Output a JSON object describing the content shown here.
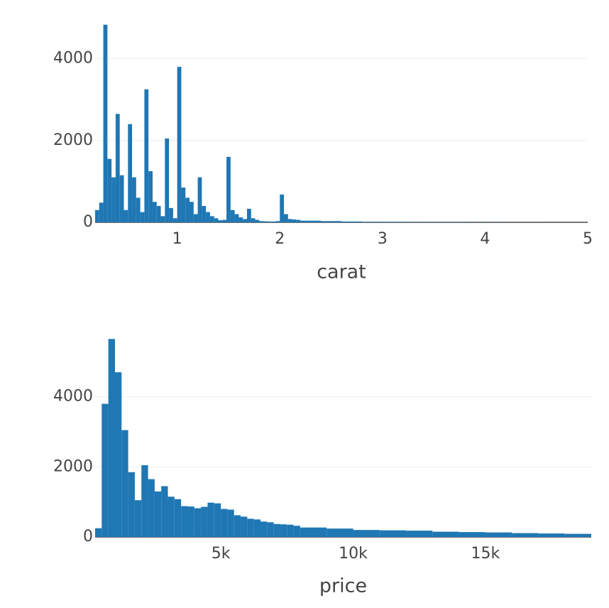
{
  "chart_data": [
    {
      "type": "histogram",
      "xlabel": "carat",
      "color": "#1f77b4",
      "grid": true,
      "bins": [
        0.2,
        0.24,
        0.28,
        0.32,
        0.36,
        0.4,
        0.44,
        0.48,
        0.52,
        0.56,
        0.6,
        0.64,
        0.68,
        0.72,
        0.76,
        0.8,
        0.84,
        0.88,
        0.92,
        0.96,
        1.0,
        1.04,
        1.08,
        1.12,
        1.16,
        1.2,
        1.24,
        1.28,
        1.32,
        1.36,
        1.4,
        1.44,
        1.48,
        1.52,
        1.56,
        1.6,
        1.64,
        1.68,
        1.72,
        1.76,
        1.8,
        1.84,
        1.88,
        1.92,
        1.96,
        2.0,
        2.04,
        2.08,
        2.12,
        2.16,
        2.2,
        2.4,
        2.6,
        2.8,
        3.0,
        3.2,
        3.4,
        3.6,
        3.8,
        4.0,
        4.2,
        4.4,
        4.6,
        4.8,
        5.0
      ],
      "counts": [
        300,
        480,
        4830,
        1550,
        1100,
        2650,
        1150,
        300,
        2400,
        1100,
        600,
        250,
        3250,
        1250,
        500,
        400,
        150,
        2050,
        350,
        100,
        3800,
        850,
        600,
        500,
        200,
        1100,
        400,
        250,
        150,
        100,
        50,
        60,
        1600,
        300,
        200,
        120,
        80,
        330,
        100,
        60,
        30,
        25,
        20,
        20,
        30,
        680,
        200,
        80,
        70,
        60,
        40,
        30,
        20,
        12,
        10,
        8,
        6,
        5,
        3,
        3,
        2,
        2,
        1,
        1
      ],
      "xlim": [
        0.2,
        5.0
      ],
      "xticks": [
        1,
        2,
        3,
        4,
        5
      ],
      "ylim": [
        0,
        5000
      ],
      "yticks": [
        0,
        2000,
        4000
      ]
    },
    {
      "type": "histogram",
      "xlabel": "price",
      "color": "#1f77b4",
      "grid": true,
      "bins": [
        250,
        500,
        750,
        1000,
        1250,
        1500,
        1750,
        2000,
        2250,
        2500,
        2750,
        3000,
        3250,
        3500,
        3750,
        4000,
        4250,
        4500,
        4750,
        5000,
        5250,
        5500,
        5750,
        6000,
        6250,
        6500,
        6750,
        7000,
        7250,
        7500,
        7750,
        8000,
        9000,
        10000,
        11000,
        12000,
        13000,
        14000,
        15000,
        16000,
        17000,
        18000,
        19000
      ],
      "counts": [
        250,
        3800,
        5650,
        4700,
        3050,
        1850,
        1050,
        2050,
        1650,
        1300,
        1450,
        1150,
        1080,
        880,
        870,
        820,
        860,
        980,
        960,
        800,
        780,
        620,
        580,
        520,
        500,
        440,
        420,
        370,
        360,
        350,
        320,
        270,
        240,
        200,
        190,
        180,
        150,
        140,
        130,
        110,
        100,
        90
      ],
      "xlim": [
        250,
        19000
      ],
      "xticks": [
        {
          "value": 5000,
          "label": "5k"
        },
        {
          "value": 10000,
          "label": "10k"
        },
        {
          "value": 15000,
          "label": "15k"
        }
      ],
      "ylim": [
        0,
        6000
      ],
      "yticks": [
        0,
        2000,
        4000
      ]
    }
  ]
}
